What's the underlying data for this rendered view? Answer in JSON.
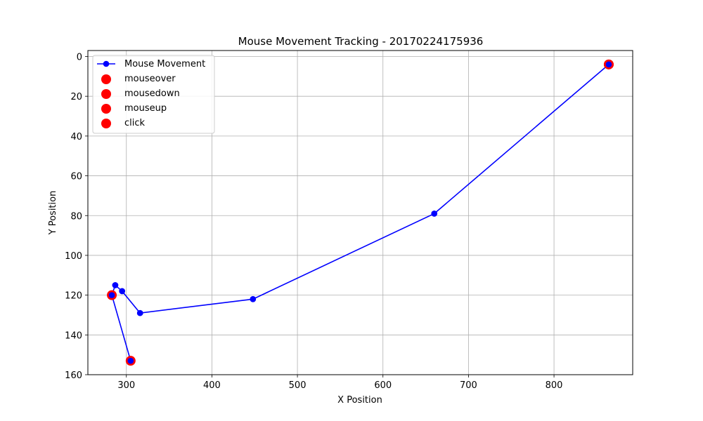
{
  "chart_data": {
    "type": "scatter",
    "title": "Mouse Movement Tracking - 20170224175936",
    "xlabel": "X Position",
    "ylabel": "Y Position",
    "xlim": [
      255,
      892
    ],
    "ylim": [
      160,
      -3
    ],
    "y_inverted": true,
    "grid": true,
    "legend_position": "top-left",
    "x_ticks": [
      300,
      400,
      500,
      600,
      700,
      800
    ],
    "y_ticks": [
      0,
      20,
      40,
      60,
      80,
      100,
      120,
      140,
      160
    ],
    "series": [
      {
        "name": "Mouse Movement",
        "kind": "line-markers",
        "color": "#0000ff",
        "points": [
          {
            "x": 864,
            "y": 4
          },
          {
            "x": 660,
            "y": 79
          },
          {
            "x": 448,
            "y": 122
          },
          {
            "x": 316,
            "y": 129
          },
          {
            "x": 295,
            "y": 118
          },
          {
            "x": 287,
            "y": 115
          },
          {
            "x": 283,
            "y": 120
          },
          {
            "x": 305,
            "y": 153
          }
        ]
      },
      {
        "name": "mouseover",
        "kind": "scatter",
        "color": "#ff0000",
        "points": [
          {
            "x": 283,
            "y": 120
          }
        ]
      },
      {
        "name": "mousedown",
        "kind": "scatter",
        "color": "#ff0000",
        "points": [
          {
            "x": 864,
            "y": 4
          }
        ]
      },
      {
        "name": "mouseup",
        "kind": "scatter",
        "color": "#ff0000",
        "points": [
          {
            "x": 864,
            "y": 4
          }
        ]
      },
      {
        "name": "click",
        "kind": "scatter",
        "color": "#ff0000",
        "points": [
          {
            "x": 305,
            "y": 153
          }
        ]
      }
    ]
  }
}
